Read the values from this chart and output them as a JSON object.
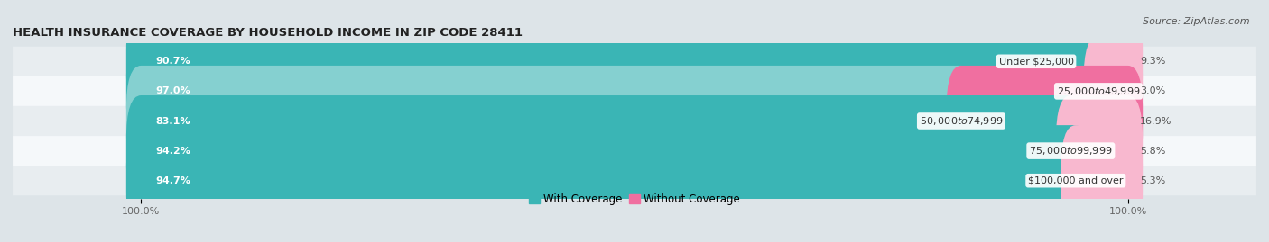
{
  "title": "HEALTH INSURANCE COVERAGE BY HOUSEHOLD INCOME IN ZIP CODE 28411",
  "source": "Source: ZipAtlas.com",
  "categories": [
    "Under $25,000",
    "$25,000 to $49,999",
    "$50,000 to $74,999",
    "$75,000 to $99,999",
    "$100,000 and over"
  ],
  "with_coverage": [
    90.7,
    97.0,
    83.1,
    94.2,
    94.7
  ],
  "without_coverage": [
    9.3,
    3.0,
    16.9,
    5.8,
    5.3
  ],
  "color_with": [
    "#3ab5b5",
    "#3ab5b5",
    "#85d0d0",
    "#3ab5b5",
    "#3ab5b5"
  ],
  "color_without": [
    "#f06fa0",
    "#f06fa0",
    "#f06fa0",
    "#f06fa0",
    "#f06fa0"
  ],
  "color_without_light": [
    "#f8b8cf",
    "#f8b8cf",
    "#f8b8cf",
    "#f8b8cf",
    "#f8b8cf"
  ],
  "row_bg": [
    "#e8edf0",
    "#f5f8fa",
    "#e8edf0",
    "#f5f8fa",
    "#e8edf0"
  ],
  "title_fontsize": 9.5,
  "source_fontsize": 8,
  "label_fontsize": 8,
  "legend_fontsize": 8.5,
  "axis_label_fontsize": 8,
  "figsize": [
    14.06,
    2.69
  ],
  "dpi": 100
}
